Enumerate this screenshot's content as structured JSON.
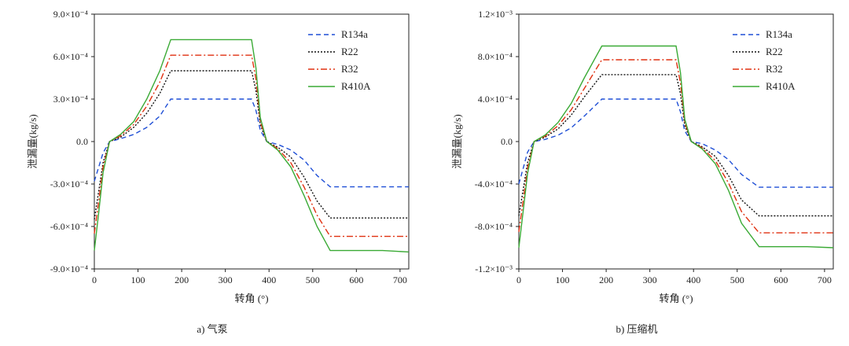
{
  "chart_data": [
    {
      "type": "line",
      "caption": "a) 气泵",
      "xlabel": "转角 (°)",
      "ylabel": "泄漏量(kg/s)",
      "xlim": [
        0,
        720
      ],
      "ylim": [
        -0.0009,
        0.0009
      ],
      "x_ticks": [
        0,
        100,
        200,
        300,
        400,
        500,
        600,
        700
      ],
      "y_ticks": [
        -0.0009,
        -0.0006,
        -0.0003,
        0,
        0.0003,
        0.0006,
        0.0009
      ],
      "y_tick_labels": [
        "-9.0×10⁻⁴",
        "-6.0×10⁻⁴",
        "-3.0×10⁻⁴",
        "0.0",
        "3.0×10⁻⁴",
        "6.0×10⁻⁴",
        "9.0×10⁻⁴"
      ],
      "series": [
        {
          "name": "R134a",
          "color": "#1f4fd6",
          "dash": "6,4",
          "x": [
            0,
            10,
            20,
            35,
            60,
            90,
            120,
            150,
            175,
            200,
            250,
            300,
            350,
            360,
            370,
            380,
            395,
            420,
            450,
            480,
            510,
            540,
            600,
            660,
            720
          ],
          "y": [
            -0.00028,
            -0.00018,
            -8e-05,
            0.0,
            2e-05,
            5e-05,
            0.0001,
            0.00018,
            0.0003,
            0.0003,
            0.0003,
            0.0003,
            0.0003,
            0.0003,
            0.00022,
            8e-05,
            0.0,
            -2e-05,
            -6e-05,
            -0.00013,
            -0.00024,
            -0.00032,
            -0.00032,
            -0.00032,
            -0.00032
          ]
        },
        {
          "name": "R22",
          "color": "#111111",
          "dash": "2,2",
          "x": [
            0,
            10,
            20,
            35,
            60,
            90,
            120,
            150,
            175,
            200,
            250,
            300,
            350,
            360,
            370,
            380,
            395,
            420,
            450,
            480,
            510,
            540,
            600,
            660,
            720
          ],
          "y": [
            -0.00055,
            -0.00035,
            -0.00015,
            0.0,
            3e-05,
            0.0001,
            0.0002,
            0.00034,
            0.0005,
            0.0005,
            0.0005,
            0.0005,
            0.0005,
            0.0005,
            0.00036,
            0.00012,
            0.0,
            -4e-05,
            -0.00011,
            -0.00025,
            -0.00042,
            -0.00054,
            -0.00054,
            -0.00054,
            -0.00054
          ]
        },
        {
          "name": "R32",
          "color": "#e03010",
          "dash": "8,3,2,3",
          "x": [
            0,
            10,
            20,
            35,
            60,
            90,
            120,
            150,
            175,
            200,
            250,
            300,
            350,
            360,
            370,
            380,
            395,
            420,
            450,
            480,
            510,
            540,
            600,
            660,
            720
          ],
          "y": [
            -0.00065,
            -0.00042,
            -0.00018,
            0.0,
            4e-05,
            0.00012,
            0.00025,
            0.00042,
            0.00061,
            0.00061,
            0.00061,
            0.00061,
            0.00061,
            0.00061,
            0.00044,
            0.00014,
            0.0,
            -5e-05,
            -0.00015,
            -0.00032,
            -0.00052,
            -0.00067,
            -0.00067,
            -0.00067,
            -0.00067
          ]
        },
        {
          "name": "R410A",
          "color": "#3aaa35",
          "dash": "",
          "x": [
            0,
            10,
            20,
            35,
            60,
            90,
            120,
            150,
            175,
            200,
            250,
            300,
            350,
            360,
            370,
            380,
            395,
            420,
            450,
            480,
            510,
            540,
            600,
            660,
            720
          ],
          "y": [
            -0.00077,
            -0.0005,
            -0.00022,
            0.0,
            5e-05,
            0.00014,
            0.0003,
            0.0005,
            0.00072,
            0.00072,
            0.00072,
            0.00072,
            0.00072,
            0.00072,
            0.00052,
            0.00017,
            0.0,
            -6e-05,
            -0.00018,
            -0.00038,
            -0.0006,
            -0.00077,
            -0.00077,
            -0.00077,
            -0.00078
          ]
        }
      ]
    },
    {
      "type": "line",
      "caption": "b) 压缩机",
      "xlabel": "转角 (°)",
      "ylabel": "泄漏量(kg/s)",
      "xlim": [
        0,
        720
      ],
      "ylim": [
        -0.0012,
        0.0012
      ],
      "x_ticks": [
        0,
        100,
        200,
        300,
        400,
        500,
        600,
        700
      ],
      "y_ticks": [
        -0.0012,
        -0.0008,
        -0.0004,
        0,
        0.0004,
        0.0008,
        0.0012
      ],
      "y_tick_labels": [
        "-1.2×10⁻³",
        "-8.0×10⁻⁴",
        "-4.0×10⁻⁴",
        "0.0",
        "4.0×10⁻⁴",
        "8.0×10⁻⁴",
        "1.2×10⁻³"
      ],
      "series": [
        {
          "name": "R134a",
          "color": "#1f4fd6",
          "dash": "6,4",
          "x": [
            0,
            10,
            20,
            35,
            60,
            90,
            120,
            150,
            190,
            200,
            250,
            300,
            350,
            360,
            370,
            380,
            395,
            420,
            450,
            480,
            510,
            550,
            600,
            660,
            720
          ],
          "y": [
            -0.0004,
            -0.00025,
            -0.0001,
            0.0,
            2e-05,
            6e-05,
            0.00013,
            0.00024,
            0.0004,
            0.0004,
            0.0004,
            0.0004,
            0.0004,
            0.0004,
            0.00028,
            0.0001,
            0.0,
            -2e-05,
            -8e-05,
            -0.00017,
            -0.00031,
            -0.00043,
            -0.00043,
            -0.00043,
            -0.00043
          ]
        },
        {
          "name": "R22",
          "color": "#111111",
          "dash": "2,2",
          "x": [
            0,
            10,
            20,
            35,
            60,
            90,
            120,
            150,
            190,
            200,
            250,
            300,
            350,
            360,
            370,
            380,
            395,
            420,
            450,
            480,
            510,
            550,
            600,
            660,
            720
          ],
          "y": [
            -0.0007,
            -0.00045,
            -0.0002,
            0.0,
            4e-05,
            0.00012,
            0.00025,
            0.00042,
            0.00063,
            0.00063,
            0.00063,
            0.00063,
            0.00063,
            0.00063,
            0.00045,
            0.00015,
            0.0,
            -5e-05,
            -0.00014,
            -0.00032,
            -0.00055,
            -0.0007,
            -0.0007,
            -0.0007,
            -0.0007
          ]
        },
        {
          "name": "R32",
          "color": "#e03010",
          "dash": "8,3,2,3",
          "x": [
            0,
            10,
            20,
            35,
            60,
            90,
            120,
            150,
            190,
            200,
            250,
            300,
            350,
            360,
            370,
            380,
            395,
            420,
            450,
            480,
            510,
            550,
            600,
            660,
            720
          ],
          "y": [
            -0.00085,
            -0.00055,
            -0.00025,
            0.0,
            5e-05,
            0.00015,
            0.0003,
            0.0005,
            0.00077,
            0.00077,
            0.00077,
            0.00077,
            0.00077,
            0.00077,
            0.00055,
            0.00018,
            0.0,
            -6e-05,
            -0.00018,
            -0.00039,
            -0.00066,
            -0.00086,
            -0.00086,
            -0.00086,
            -0.00086
          ]
        },
        {
          "name": "R410A",
          "color": "#3aaa35",
          "dash": "",
          "x": [
            0,
            10,
            20,
            35,
            60,
            90,
            120,
            150,
            190,
            200,
            250,
            300,
            350,
            360,
            370,
            380,
            395,
            420,
            450,
            480,
            510,
            550,
            600,
            660,
            720
          ],
          "y": [
            -0.001,
            -0.00065,
            -0.0003,
            0.0,
            6e-05,
            0.00018,
            0.00036,
            0.0006,
            0.0009,
            0.0009,
            0.0009,
            0.0009,
            0.0009,
            0.0009,
            0.00065,
            0.00021,
            0.0,
            -7e-05,
            -0.00021,
            -0.00046,
            -0.00077,
            -0.00099,
            -0.00099,
            -0.00099,
            -0.001
          ]
        }
      ]
    }
  ]
}
